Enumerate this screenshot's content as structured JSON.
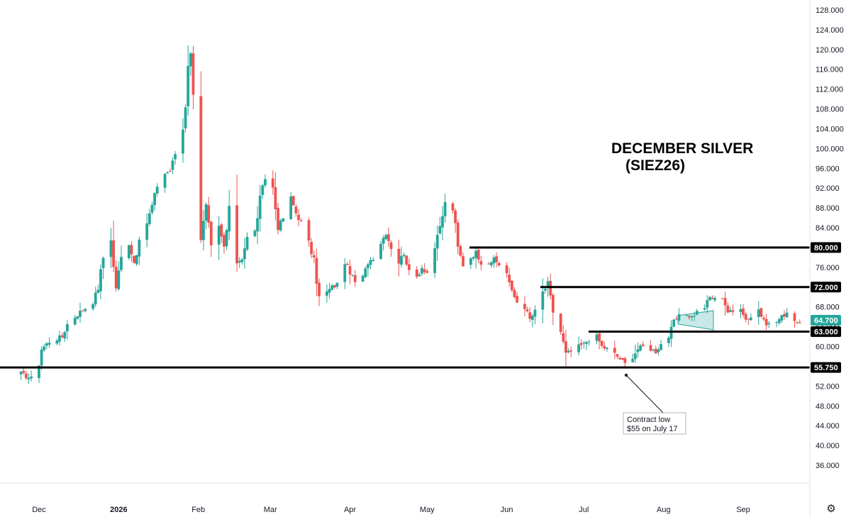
{
  "chart_data": {
    "type": "candlestick",
    "title": "DECEMBER SILVER",
    "subtitle": "(SIEZ26)",
    "xlabel": "",
    "ylabel": "",
    "ylim": [
      32,
      130
    ],
    "y_ticks": [
      "36.000",
      "40.000",
      "44.000",
      "48.000",
      "52.000",
      "56.000",
      "60.000",
      "64.000",
      "68.000",
      "72.000",
      "76.000",
      "80.000",
      "84.000",
      "88.000",
      "92.000",
      "96.000",
      "100.000",
      "104.000",
      "108.000",
      "112.000",
      "116.000",
      "120.000",
      "124.000",
      "128.000"
    ],
    "x_tick_labels": [
      "Dec",
      "2026",
      "Feb",
      "Mar",
      "Apr",
      "May",
      "Jun",
      "Jul",
      "Aug",
      "Sep"
    ],
    "grid": false,
    "colors": {
      "up": "#26a69a",
      "down": "#ef5350",
      "level_line": "#000000",
      "last_price_tag": "#26a69a"
    },
    "horizontal_levels": [
      {
        "value": 80.0,
        "label": "80.000"
      },
      {
        "value": 72.0,
        "label": "72.000"
      },
      {
        "value": 63.0,
        "label": "63.000"
      },
      {
        "value": 55.75,
        "label": "55.750"
      }
    ],
    "last_price": {
      "value": 64.7,
      "label": "64.700"
    },
    "annotation": {
      "line1": "Contract low",
      "line2": "$55 on  July 17"
    },
    "ohlc_waypoints": [
      [
        "2025-11-24",
        54.5
      ],
      [
        "2025-11-28",
        53.5
      ],
      [
        "2025-12-01",
        56.5
      ],
      [
        "2025-12-02",
        59.5
      ],
      [
        "2025-12-05",
        61
      ],
      [
        "2025-12-10",
        62
      ],
      [
        "2025-12-12",
        64.5
      ],
      [
        "2025-12-17",
        67
      ],
      [
        "2025-12-22",
        69
      ],
      [
        "2025-12-24",
        72
      ],
      [
        "2025-12-26",
        78
      ],
      [
        "2025-12-29",
        82
      ],
      [
        "2025-12-30",
        76
      ],
      [
        "2025-12-31",
        72
      ],
      [
        "2026-01-02",
        78
      ],
      [
        "2026-01-05",
        81
      ],
      [
        "2026-01-07",
        77
      ],
      [
        "2026-01-09",
        81
      ],
      [
        "2026-01-12",
        85
      ],
      [
        "2026-01-14",
        88.5
      ],
      [
        "2026-01-16",
        92.5
      ],
      [
        "2026-01-19",
        95
      ],
      [
        "2026-01-21",
        95.5
      ],
      [
        "2026-01-23",
        99
      ],
      [
        "2026-01-26",
        104
      ],
      [
        "2026-01-27",
        109
      ],
      [
        "2026-01-28",
        117
      ],
      [
        "2026-01-29",
        119
      ],
      [
        "2026-01-30",
        115
      ],
      [
        "2026-02-02",
        82
      ],
      [
        "2026-02-04",
        88
      ],
      [
        "2026-02-06",
        80
      ],
      [
        "2026-02-09",
        84
      ],
      [
        "2026-02-11",
        80
      ],
      [
        "2026-02-13",
        87
      ],
      [
        "2026-02-16",
        77
      ],
      [
        "2026-02-18",
        78
      ],
      [
        "2026-02-20",
        82
      ],
      [
        "2026-02-23",
        83
      ],
      [
        "2026-02-25",
        90
      ],
      [
        "2026-02-27",
        94
      ],
      [
        "2026-03-02",
        92
      ],
      [
        "2026-03-04",
        84
      ],
      [
        "2026-03-06",
        86
      ],
      [
        "2026-03-09",
        90
      ],
      [
        "2026-03-11",
        87
      ],
      [
        "2026-03-13",
        85
      ],
      [
        "2026-03-16",
        81
      ],
      [
        "2026-03-18",
        77
      ],
      [
        "2026-03-20",
        70
      ],
      [
        "2026-03-23",
        71
      ],
      [
        "2026-03-25",
        72
      ],
      [
        "2026-03-27",
        72.5
      ],
      [
        "2026-03-30",
        77
      ],
      [
        "2026-04-01",
        75
      ],
      [
        "2026-04-03",
        73
      ],
      [
        "2026-04-06",
        74
      ],
      [
        "2026-04-08",
        77
      ],
      [
        "2026-04-10",
        78
      ],
      [
        "2026-04-13",
        81
      ],
      [
        "2026-04-15",
        83
      ],
      [
        "2026-04-17",
        80
      ],
      [
        "2026-04-20",
        77
      ],
      [
        "2026-04-22",
        79
      ],
      [
        "2026-04-24",
        75
      ],
      [
        "2026-04-27",
        74
      ],
      [
        "2026-04-29",
        76
      ],
      [
        "2026-05-01",
        75
      ],
      [
        "2026-05-04",
        80
      ],
      [
        "2026-05-06",
        84
      ],
      [
        "2026-05-08",
        89
      ],
      [
        "2026-05-11",
        88
      ],
      [
        "2026-05-13",
        80
      ],
      [
        "2026-05-15",
        76.5
      ],
      [
        "2026-05-18",
        78
      ],
      [
        "2026-05-20",
        79
      ],
      [
        "2026-05-22",
        77
      ],
      [
        "2026-05-25",
        77
      ],
      [
        "2026-05-27",
        77.5
      ],
      [
        "2026-05-29",
        76.5
      ],
      [
        "2026-06-01",
        75
      ],
      [
        "2026-06-03",
        71
      ],
      [
        "2026-06-05",
        69
      ],
      [
        "2026-06-08",
        68
      ],
      [
        "2026-06-10",
        65.5
      ],
      [
        "2026-06-12",
        67
      ],
      [
        "2026-06-15",
        71
      ],
      [
        "2026-06-17",
        72.5
      ],
      [
        "2026-06-19",
        67
      ],
      [
        "2026-06-22",
        63
      ],
      [
        "2026-06-24",
        58.5
      ],
      [
        "2026-06-26",
        59
      ],
      [
        "2026-06-29",
        60
      ],
      [
        "2026-07-01",
        60.5
      ],
      [
        "2026-07-03",
        61.5
      ],
      [
        "2026-07-06",
        62
      ],
      [
        "2026-07-08",
        60
      ],
      [
        "2026-07-10",
        59.5
      ],
      [
        "2026-07-13",
        58.5
      ],
      [
        "2026-07-15",
        57.5
      ],
      [
        "2026-07-17",
        56.5
      ],
      [
        "2026-07-20",
        58
      ],
      [
        "2026-07-22",
        59.5
      ],
      [
        "2026-07-24",
        60
      ],
      [
        "2026-07-27",
        59.5
      ],
      [
        "2026-07-29",
        59
      ],
      [
        "2026-07-31",
        60.5
      ],
      [
        "2026-08-03",
        62
      ],
      [
        "2026-08-05",
        65
      ],
      [
        "2026-08-07",
        66
      ],
      [
        "2026-08-10",
        66.5
      ],
      [
        "2026-08-12",
        66
      ],
      [
        "2026-08-14",
        67
      ],
      [
        "2026-08-17",
        68
      ],
      [
        "2026-08-19",
        70
      ],
      [
        "2026-08-21",
        69.5
      ],
      [
        "2026-08-24",
        70
      ],
      [
        "2026-08-26",
        67
      ],
      [
        "2026-08-28",
        67
      ],
      [
        "2026-08-31",
        68
      ],
      [
        "2026-09-02",
        65.5
      ],
      [
        "2026-09-04",
        66
      ],
      [
        "2026-09-07",
        67.5
      ],
      [
        "2026-09-09",
        65
      ],
      [
        "2026-09-11",
        64.5
      ],
      [
        "2026-09-14",
        65
      ],
      [
        "2026-09-16",
        66
      ],
      [
        "2026-09-18",
        67
      ],
      [
        "2026-09-21",
        65.5
      ],
      [
        "2026-09-23",
        64.7
      ]
    ]
  },
  "ui": {
    "settings_icon": "gear-icon"
  }
}
